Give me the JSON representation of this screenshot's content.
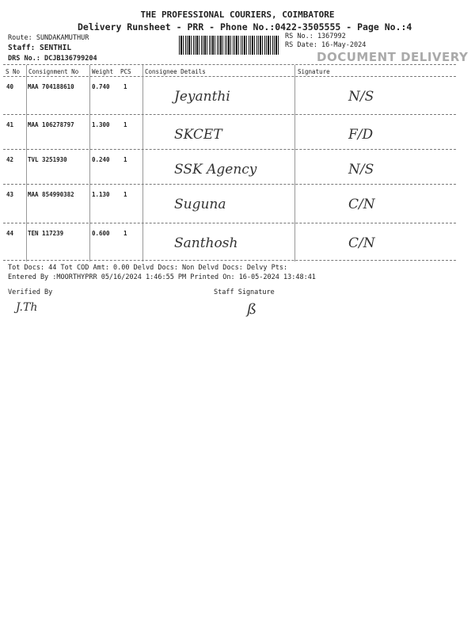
{
  "header": {
    "company": "THE PROFESSIONAL COURIERS, COIMBATORE",
    "subtitle": "Delivery Runsheet - PRR - Phone No.:0422-3505555 - Page No.:4",
    "route": "Route: SUNDAKAMUTHUR",
    "staff": "Staff: SENTHIL",
    "drs_no": "DRS No.: DCJB136799204",
    "rs_no": "RS No.: 1367992",
    "rs_date": "RS Date: 16-May-2024",
    "stamp": "DOCUMENT DELIVERY"
  },
  "table": {
    "columns": [
      "S No",
      "Consignment No",
      "Weight",
      "PCS",
      "Consignee Details",
      "Signature"
    ],
    "rows": [
      {
        "sno": "40",
        "consignment": "MAA 704188610",
        "weight": "0.740",
        "pcs": "1",
        "consignee": "Jeyanthi",
        "signature": "N/S"
      },
      {
        "sno": "41",
        "consignment": "MAA 106278797",
        "weight": "1.300",
        "pcs": "1",
        "consignee": "SKCET",
        "signature": "F/D"
      },
      {
        "sno": "42",
        "consignment": "TVL 3251930",
        "weight": "0.240",
        "pcs": "1",
        "consignee": "SSK Agency",
        "signature": "N/S"
      },
      {
        "sno": "43",
        "consignment": "MAA 854990382",
        "weight": "1.130",
        "pcs": "1",
        "consignee": "Suguna",
        "signature": "C/N"
      },
      {
        "sno": "44",
        "consignment": "TEN 117239",
        "weight": "0.600",
        "pcs": "1",
        "consignee": "Santhosh",
        "signature": "C/N"
      }
    ]
  },
  "footer": {
    "totals": "Tot Docs:  44    Tot COD Amt:     0.00    Delvd Docs:     Non Delvd Docs:     Delvy Pts:",
    "entered": "Entered By :MOORTHYPRR 05/16/2024 1:46:55 PM     Printed On: 16-05-2024 13:48:41",
    "verified_by": "Verified By",
    "verified_sign": "J.Th",
    "staff_signature": "Staff Signature",
    "staff_sign": "ß"
  }
}
